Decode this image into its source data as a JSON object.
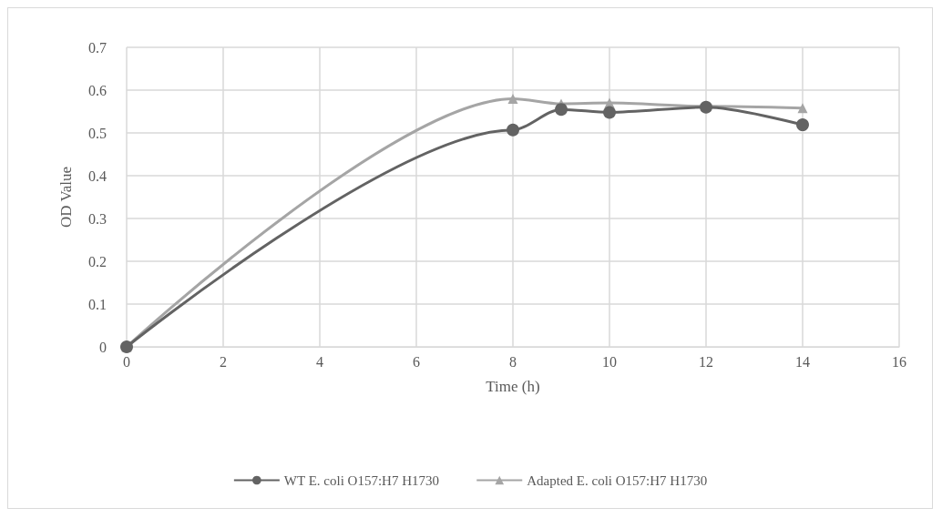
{
  "chart_data": {
    "type": "line",
    "xlabel": "Time (h)",
    "ylabel": "OD Value",
    "xlim": [
      0,
      16
    ],
    "xticks": [
      0,
      2,
      4,
      6,
      8,
      10,
      12,
      14,
      16
    ],
    "ylim": [
      0,
      0.7
    ],
    "yticks": [
      0,
      0.1,
      0.2,
      0.3,
      0.4,
      0.5,
      0.6,
      0.7
    ],
    "grid": true,
    "legend": "bottom",
    "x": [
      0,
      8,
      9,
      10,
      12,
      14
    ],
    "series": [
      {
        "name": "WT E. coli O157:H7 H1730",
        "color": "#636363",
        "marker": "circle",
        "values": [
          0,
          0.507,
          0.555,
          0.548,
          0.56,
          0.519
        ]
      },
      {
        "name": "Adapted E. coli O157:H7 H1730",
        "color": "#a5a5a5",
        "marker": "triangle",
        "values": [
          0,
          0.58,
          0.568,
          0.57,
          0.562,
          0.558
        ]
      }
    ]
  }
}
